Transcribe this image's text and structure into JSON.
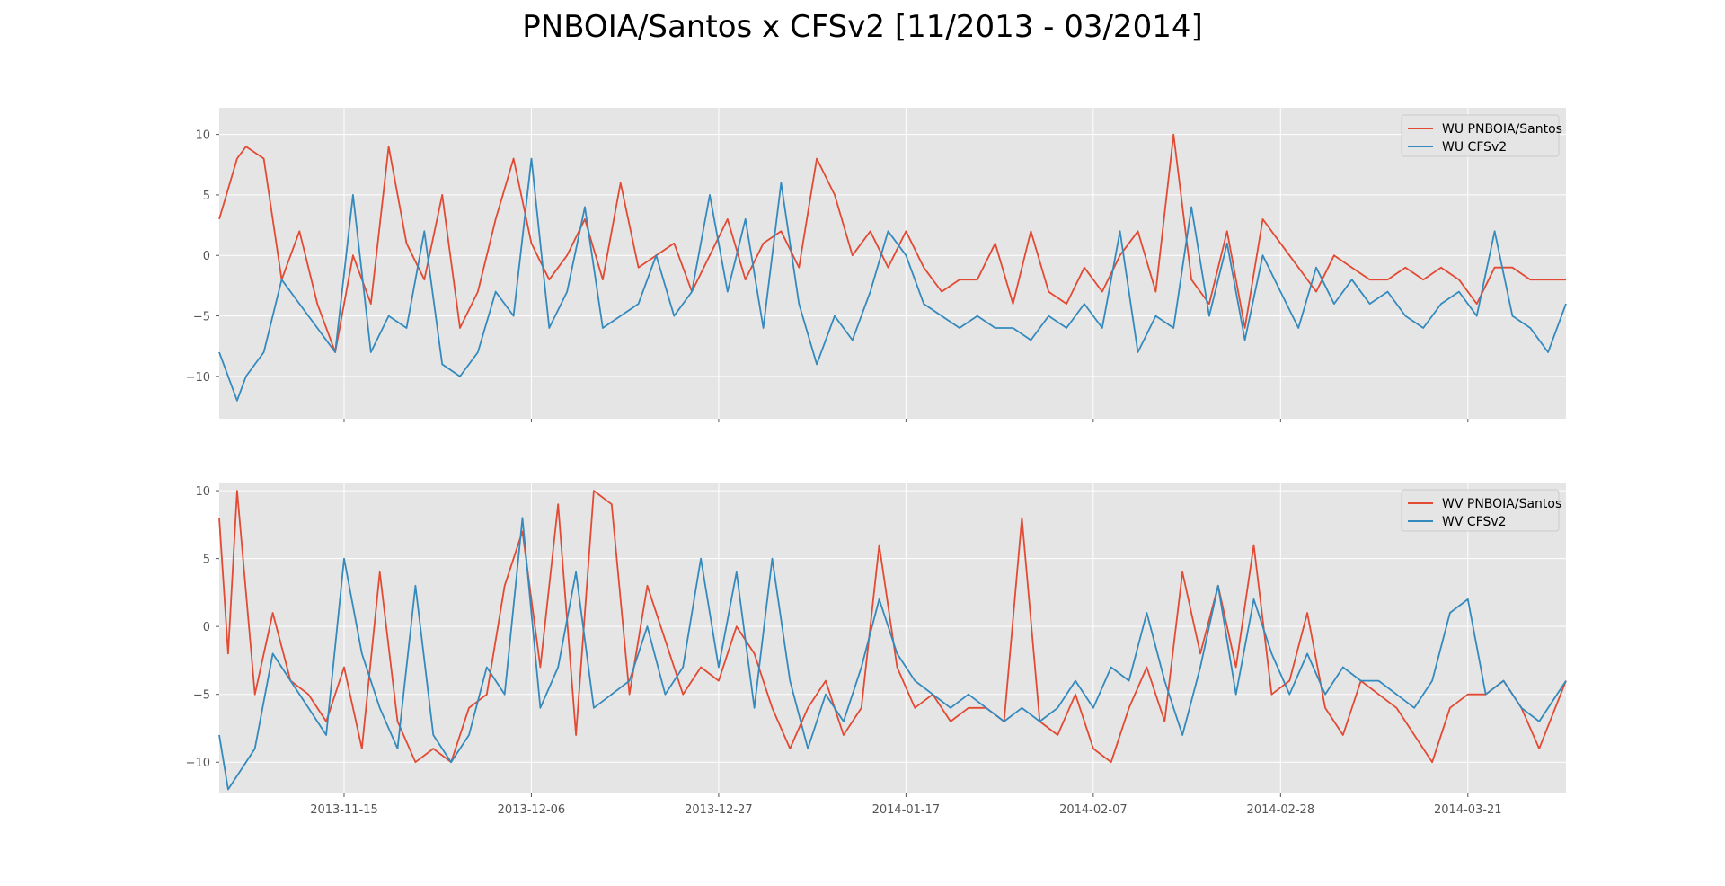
{
  "figure": {
    "title": "PNBOIA/Santos x CFSv2 [11/2013 - 03/2014]"
  },
  "chart_data": [
    {
      "type": "line",
      "panel": "top",
      "xlim": [
        "2013-11-01",
        "2014-04-01"
      ],
      "ylim": [
        -13.5,
        12.2
      ],
      "yticks": [
        10,
        5,
        0,
        -5,
        -10
      ],
      "xticks": [
        "2013-11-15",
        "2013-12-06",
        "2013-12-27",
        "2014-01-17",
        "2014-02-07",
        "2014-02-28",
        "2014-03-21"
      ],
      "show_xtick_labels": false,
      "grid": true,
      "legend_position": "top-right",
      "series": [
        {
          "name": "WU PNBOIA/Santos",
          "color": "#E24A33",
          "x": [
            "2013-11-01",
            "2013-11-03",
            "2013-11-04",
            "2013-11-06",
            "2013-11-08",
            "2013-11-10",
            "2013-11-12",
            "2013-11-14",
            "2013-11-16",
            "2013-11-18",
            "2013-11-20",
            "2013-11-22",
            "2013-11-24",
            "2013-11-26",
            "2013-11-28",
            "2013-11-30",
            "2013-12-02",
            "2013-12-04",
            "2013-12-06",
            "2013-12-08",
            "2013-12-10",
            "2013-12-12",
            "2013-12-14",
            "2013-12-16",
            "2013-12-18",
            "2013-12-20",
            "2013-12-22",
            "2013-12-24",
            "2013-12-26",
            "2013-12-28",
            "2013-12-30",
            "2014-01-01",
            "2014-01-03",
            "2014-01-05",
            "2014-01-07",
            "2014-01-09",
            "2014-01-11",
            "2014-01-13",
            "2014-01-15",
            "2014-01-17",
            "2014-01-19",
            "2014-01-21",
            "2014-01-23",
            "2014-01-25",
            "2014-01-27",
            "2014-01-29",
            "2014-01-31",
            "2014-02-02",
            "2014-02-04",
            "2014-02-06",
            "2014-02-08",
            "2014-02-10",
            "2014-02-12",
            "2014-02-14",
            "2014-02-16",
            "2014-02-18",
            "2014-02-20",
            "2014-02-22",
            "2014-02-24",
            "2014-02-26",
            "2014-02-28",
            "2014-03-02",
            "2014-03-04",
            "2014-03-06",
            "2014-03-08",
            "2014-03-10",
            "2014-03-12",
            "2014-03-14",
            "2014-03-16",
            "2014-03-18",
            "2014-03-20",
            "2014-03-22",
            "2014-03-24",
            "2014-03-26",
            "2014-03-28",
            "2014-03-30",
            "2014-04-01"
          ],
          "values": [
            3,
            8,
            9,
            8,
            -2,
            2,
            -4,
            -8,
            0,
            -4,
            9,
            1,
            -2,
            5,
            -6,
            -3,
            3,
            8,
            1,
            -2,
            0,
            3,
            -2,
            6,
            -1,
            0,
            1,
            -3,
            0,
            3,
            -2,
            1,
            2,
            -1,
            8,
            5,
            0,
            2,
            -1,
            2,
            -1,
            -3,
            -2,
            -2,
            1,
            -4,
            2,
            -3,
            -4,
            -1,
            -3,
            0,
            2,
            -3,
            10,
            -2,
            -4,
            2,
            -6,
            3,
            1,
            -1,
            -3,
            0,
            -1,
            -2,
            -2,
            -1,
            -2,
            -1,
            -2,
            -4,
            -1,
            -1,
            -2,
            -2,
            -2
          ]
        },
        {
          "name": "WU CFSv2",
          "color": "#348ABD",
          "x": [
            "2013-11-01",
            "2013-11-03",
            "2013-11-04",
            "2013-11-06",
            "2013-11-08",
            "2013-11-10",
            "2013-11-12",
            "2013-11-14",
            "2013-11-16",
            "2013-11-18",
            "2013-11-20",
            "2013-11-22",
            "2013-11-24",
            "2013-11-26",
            "2013-11-28",
            "2013-11-30",
            "2013-12-02",
            "2013-12-04",
            "2013-12-06",
            "2013-12-08",
            "2013-12-10",
            "2013-12-12",
            "2013-12-14",
            "2013-12-16",
            "2013-12-18",
            "2013-12-20",
            "2013-12-22",
            "2013-12-24",
            "2013-12-26",
            "2013-12-28",
            "2013-12-30",
            "2014-01-01",
            "2014-01-03",
            "2014-01-05",
            "2014-01-07",
            "2014-01-09",
            "2014-01-11",
            "2014-01-13",
            "2014-01-15",
            "2014-01-17",
            "2014-01-19",
            "2014-01-21",
            "2014-01-23",
            "2014-01-25",
            "2014-01-27",
            "2014-01-29",
            "2014-01-31",
            "2014-02-02",
            "2014-02-04",
            "2014-02-06",
            "2014-02-08",
            "2014-02-10",
            "2014-02-12",
            "2014-02-14",
            "2014-02-16",
            "2014-02-18",
            "2014-02-20",
            "2014-02-22",
            "2014-02-24",
            "2014-02-26",
            "2014-02-28",
            "2014-03-02",
            "2014-03-04",
            "2014-03-06",
            "2014-03-08",
            "2014-03-10",
            "2014-03-12",
            "2014-03-14",
            "2014-03-16",
            "2014-03-18",
            "2014-03-20",
            "2014-03-22",
            "2014-03-24",
            "2014-03-26",
            "2014-03-28",
            "2014-03-30",
            "2014-04-01"
          ],
          "values": [
            -8,
            -12,
            -10,
            -8,
            -2,
            -4,
            -6,
            -8,
            5,
            -8,
            -5,
            -6,
            2,
            -9,
            -10,
            -8,
            -3,
            -5,
            8,
            -6,
            -3,
            4,
            -6,
            -5,
            -4,
            0,
            -5,
            -3,
            5,
            -3,
            3,
            -6,
            6,
            -4,
            -9,
            -5,
            -7,
            -3,
            2,
            0,
            -4,
            -5,
            -6,
            -5,
            -6,
            -6,
            -7,
            -5,
            -6,
            -4,
            -6,
            2,
            -8,
            -5,
            -6,
            4,
            -5,
            1,
            -7,
            0,
            -3,
            -6,
            -1,
            -4,
            -2,
            -4,
            -3,
            -5,
            -6,
            -4,
            -3,
            -5,
            2,
            -5,
            -6,
            -8,
            -4
          ]
        }
      ]
    },
    {
      "type": "line",
      "panel": "bottom",
      "xlim": [
        "2013-11-01",
        "2014-04-01"
      ],
      "ylim": [
        -12.3,
        10.6
      ],
      "yticks": [
        10,
        5,
        0,
        -5,
        -10
      ],
      "xticks": [
        "2013-11-15",
        "2013-12-06",
        "2013-12-27",
        "2014-01-17",
        "2014-02-07",
        "2014-02-28",
        "2014-03-21"
      ],
      "show_xtick_labels": true,
      "grid": true,
      "legend_position": "top-right",
      "series": [
        {
          "name": "WV PNBOIA/Santos",
          "color": "#E24A33",
          "x": [
            "2013-11-01",
            "2013-11-02",
            "2013-11-03",
            "2013-11-05",
            "2013-11-07",
            "2013-11-09",
            "2013-11-11",
            "2013-11-13",
            "2013-11-15",
            "2013-11-17",
            "2013-11-19",
            "2013-11-21",
            "2013-11-23",
            "2013-11-25",
            "2013-11-27",
            "2013-11-29",
            "2013-12-01",
            "2013-12-03",
            "2013-12-05",
            "2013-12-07",
            "2013-12-09",
            "2013-12-11",
            "2013-12-13",
            "2013-12-15",
            "2013-12-17",
            "2013-12-19",
            "2013-12-21",
            "2013-12-23",
            "2013-12-25",
            "2013-12-27",
            "2013-12-29",
            "2013-12-31",
            "2014-01-02",
            "2014-01-04",
            "2014-01-06",
            "2014-01-08",
            "2014-01-10",
            "2014-01-12",
            "2014-01-14",
            "2014-01-16",
            "2014-01-18",
            "2014-01-20",
            "2014-01-22",
            "2014-01-24",
            "2014-01-26",
            "2014-01-28",
            "2014-01-30",
            "2014-02-01",
            "2014-02-03",
            "2014-02-05",
            "2014-02-07",
            "2014-02-09",
            "2014-02-11",
            "2014-02-13",
            "2014-02-15",
            "2014-02-17",
            "2014-02-19",
            "2014-02-21",
            "2014-02-23",
            "2014-02-25",
            "2014-02-27",
            "2014-03-01",
            "2014-03-03",
            "2014-03-05",
            "2014-03-07",
            "2014-03-09",
            "2014-03-11",
            "2014-03-13",
            "2014-03-15",
            "2014-03-17",
            "2014-03-19",
            "2014-03-21",
            "2014-03-23",
            "2014-03-25",
            "2014-03-27",
            "2014-03-29",
            "2014-04-01"
          ],
          "values": [
            8,
            -2,
            10,
            -5,
            1,
            -4,
            -5,
            -7,
            -3,
            -9,
            4,
            -7,
            -10,
            -9,
            -10,
            -6,
            -5,
            3,
            7,
            -3,
            9,
            -8,
            10,
            9,
            -5,
            3,
            -1,
            -5,
            -3,
            -4,
            0,
            -2,
            -6,
            -9,
            -6,
            -4,
            -8,
            -6,
            6,
            -3,
            -6,
            -5,
            -7,
            -6,
            -6,
            -7,
            8,
            -7,
            -8,
            -5,
            -9,
            -10,
            -6,
            -3,
            -7,
            4,
            -2,
            3,
            -3,
            6,
            -5,
            -4,
            1,
            -6,
            -8,
            -4,
            -5,
            -6,
            -8,
            -10,
            -6,
            -5,
            -5,
            -4,
            -6,
            -9,
            -4
          ]
        },
        {
          "name": "WV CFSv2",
          "color": "#348ABD",
          "x": [
            "2013-11-01",
            "2013-11-02",
            "2013-11-03",
            "2013-11-05",
            "2013-11-07",
            "2013-11-09",
            "2013-11-11",
            "2013-11-13",
            "2013-11-15",
            "2013-11-17",
            "2013-11-19",
            "2013-11-21",
            "2013-11-23",
            "2013-11-25",
            "2013-11-27",
            "2013-11-29",
            "2013-12-01",
            "2013-12-03",
            "2013-12-05",
            "2013-12-07",
            "2013-12-09",
            "2013-12-11",
            "2013-12-13",
            "2013-12-15",
            "2013-12-17",
            "2013-12-19",
            "2013-12-21",
            "2013-12-23",
            "2013-12-25",
            "2013-12-27",
            "2013-12-29",
            "2013-12-31",
            "2014-01-02",
            "2014-01-04",
            "2014-01-06",
            "2014-01-08",
            "2014-01-10",
            "2014-01-12",
            "2014-01-14",
            "2014-01-16",
            "2014-01-18",
            "2014-01-20",
            "2014-01-22",
            "2014-01-24",
            "2014-01-26",
            "2014-01-28",
            "2014-01-30",
            "2014-02-01",
            "2014-02-03",
            "2014-02-05",
            "2014-02-07",
            "2014-02-09",
            "2014-02-11",
            "2014-02-13",
            "2014-02-15",
            "2014-02-17",
            "2014-02-19",
            "2014-02-21",
            "2014-02-23",
            "2014-02-25",
            "2014-02-27",
            "2014-03-01",
            "2014-03-03",
            "2014-03-05",
            "2014-03-07",
            "2014-03-09",
            "2014-03-11",
            "2014-03-13",
            "2014-03-15",
            "2014-03-17",
            "2014-03-19",
            "2014-03-21",
            "2014-03-23",
            "2014-03-25",
            "2014-03-27",
            "2014-03-29",
            "2014-04-01"
          ],
          "values": [
            -8,
            -12,
            -11,
            -9,
            -2,
            -4,
            -6,
            -8,
            5,
            -2,
            -6,
            -9,
            3,
            -8,
            -10,
            -8,
            -3,
            -5,
            8,
            -6,
            -3,
            4,
            -6,
            -5,
            -4,
            0,
            -5,
            -3,
            5,
            -3,
            4,
            -6,
            5,
            -4,
            -9,
            -5,
            -7,
            -3,
            2,
            -2,
            -4,
            -5,
            -6,
            -5,
            -6,
            -7,
            -6,
            -7,
            -6,
            -4,
            -6,
            -3,
            -4,
            1,
            -4,
            -8,
            -3,
            3,
            -5,
            2,
            -2,
            -5,
            -2,
            -5,
            -3,
            -4,
            -4,
            -5,
            -6,
            -4,
            1,
            2,
            -5,
            -4,
            -6,
            -7,
            -4
          ]
        }
      ]
    }
  ]
}
